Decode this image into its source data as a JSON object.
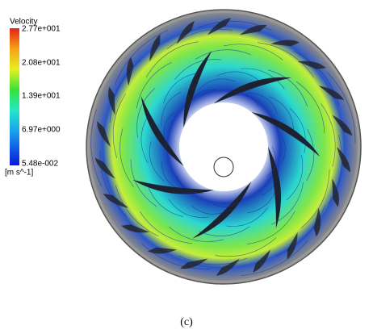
{
  "legend": {
    "title": "Velocity",
    "labels": [
      "2.77e+001",
      "2.08e+001",
      "1.39e+001",
      "6.97e+000",
      "5.48e-002"
    ],
    "unit": "[m s^-1]"
  },
  "caption": "(c)"
}
